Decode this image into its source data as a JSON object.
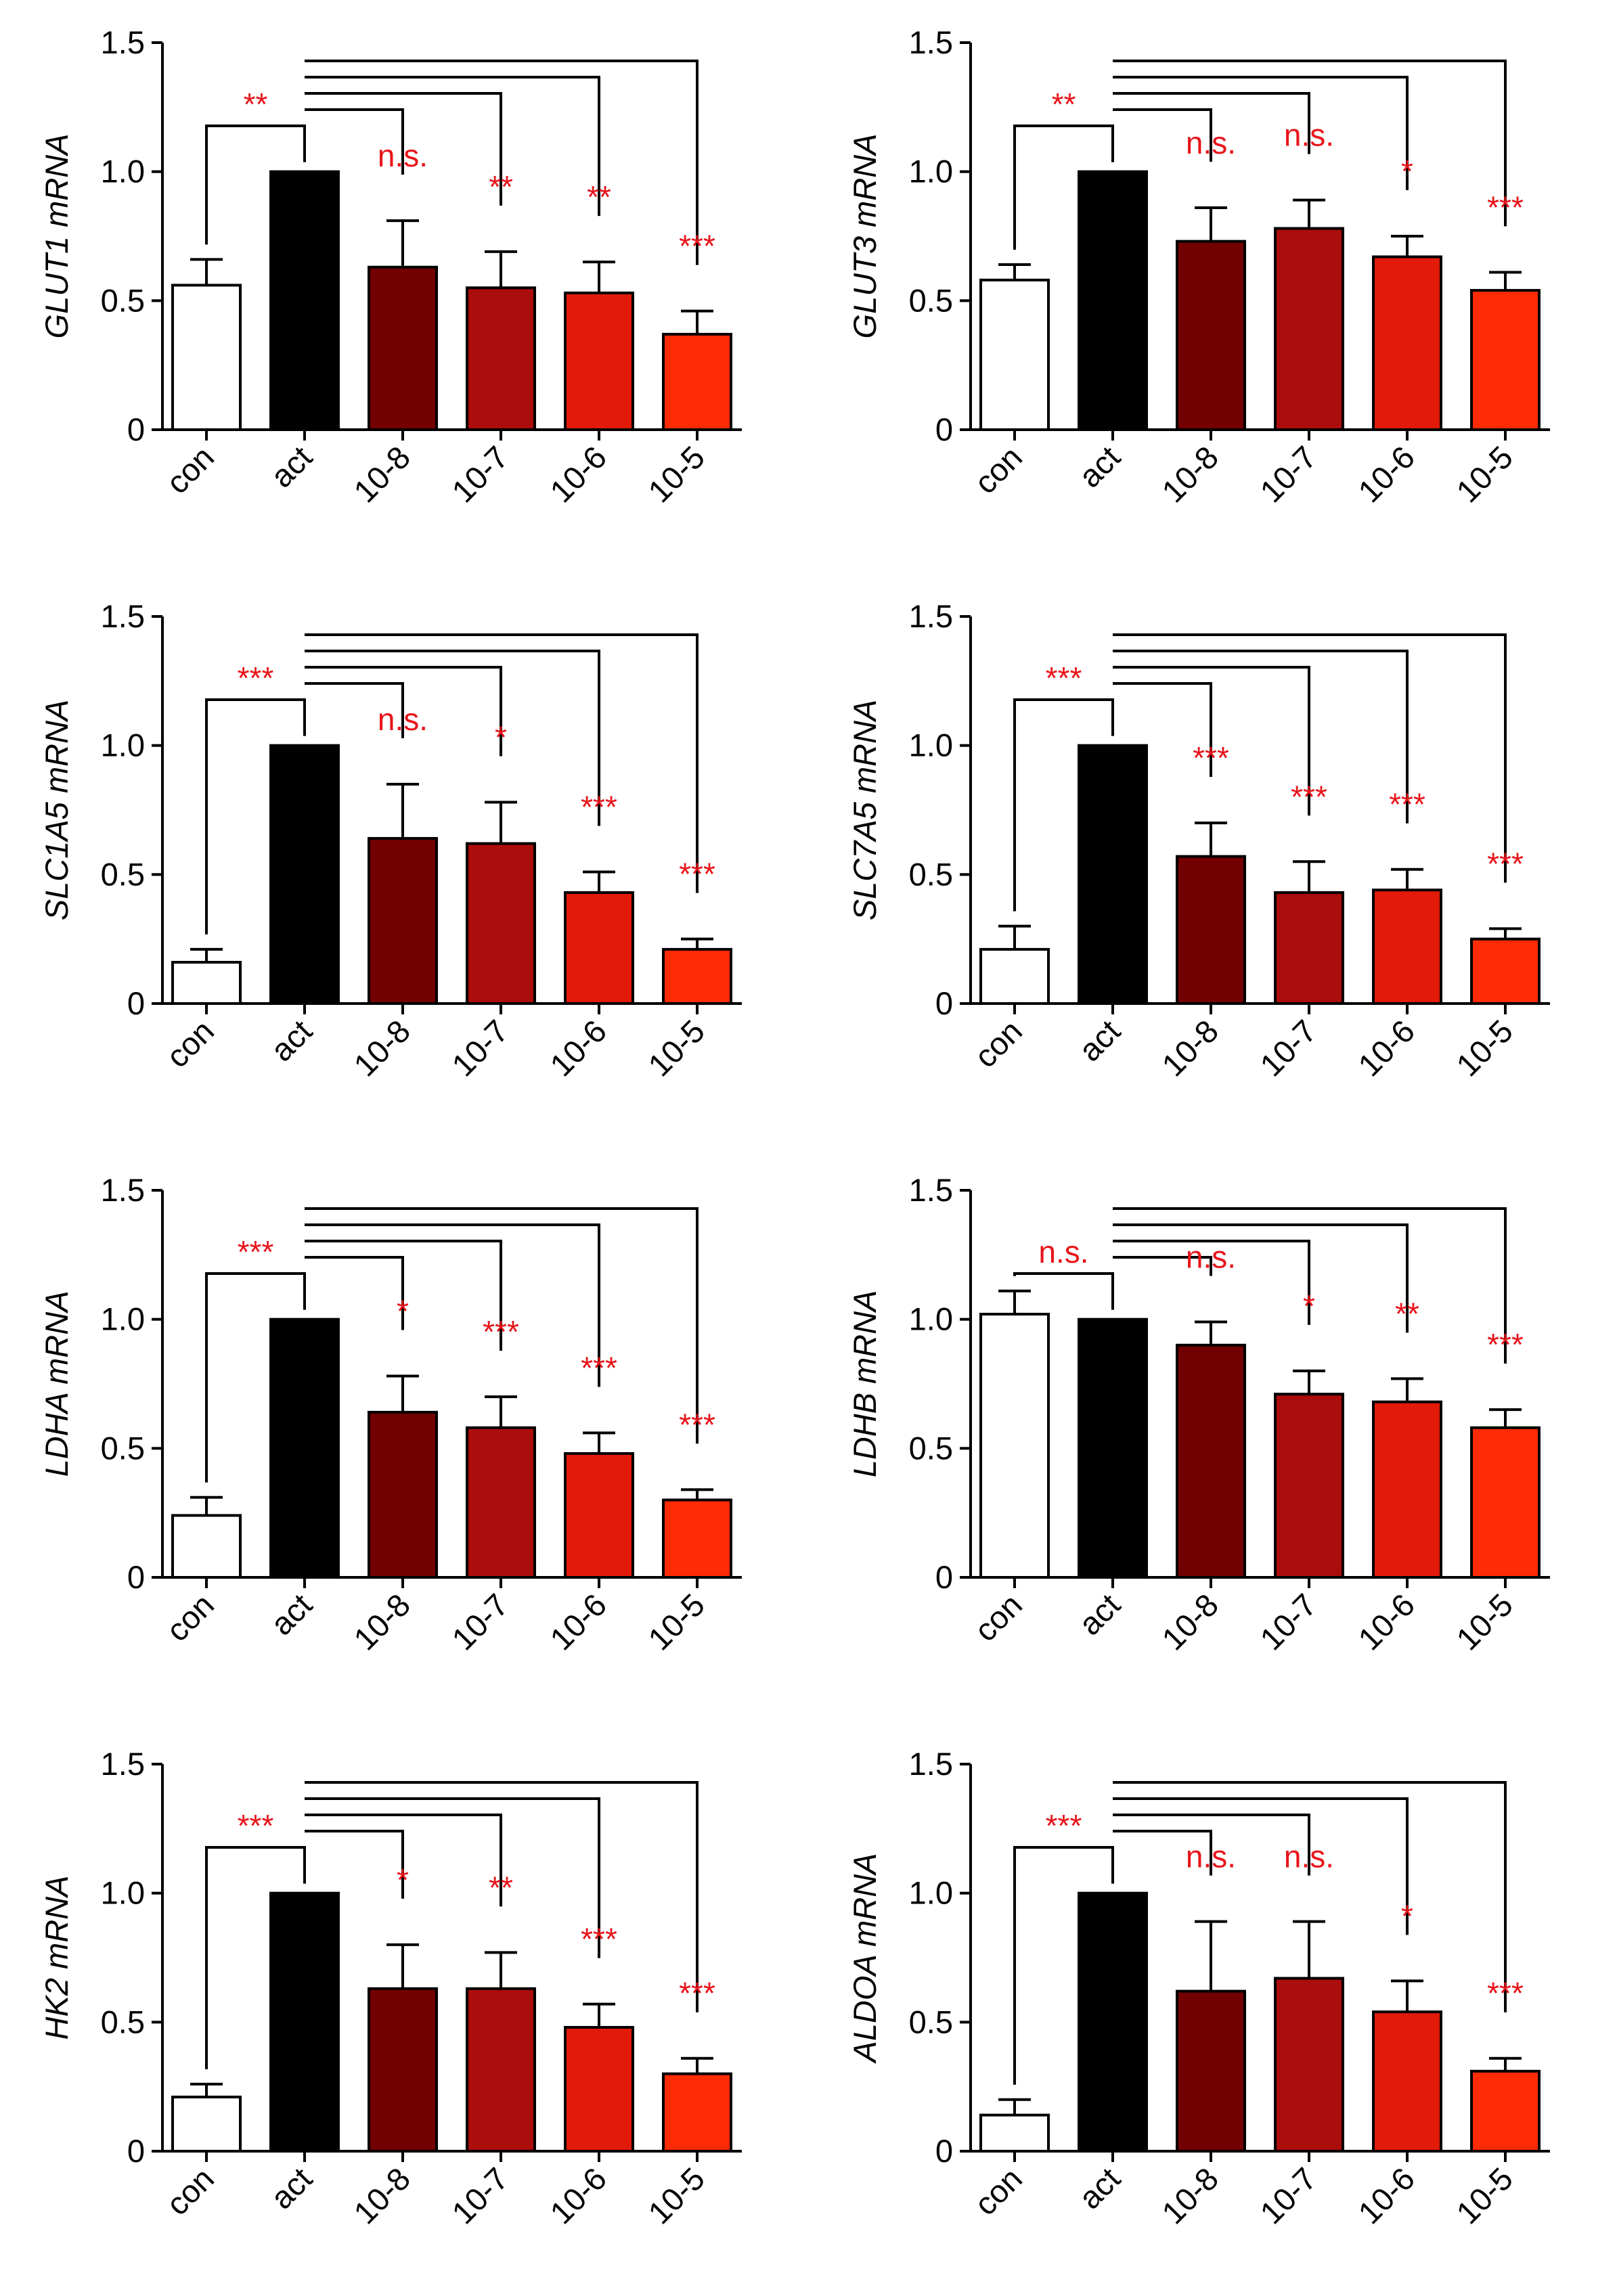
{
  "colors": {
    "con": "#ffffff",
    "act": "#000000",
    "10-8": "#720000",
    "10-7": "#ab0c0c",
    "10-6": "#e21a0a",
    "10-5": "#ff2b05",
    "significance": "#e8141a",
    "axis": "#000000"
  },
  "chart_data": [
    {
      "type": "bar",
      "ylabel": "GLUT1 mRNA",
      "ylim": [
        0,
        1.5
      ],
      "yticks": [
        "0",
        "0.5",
        "1.0",
        "1.5"
      ],
      "categories": [
        "con",
        "act",
        "10-8",
        "10-7",
        "10-6",
        "10-5"
      ],
      "values": [
        0.56,
        1.0,
        0.63,
        0.55,
        0.53,
        0.37
      ],
      "errors": [
        0.1,
        0.0,
        0.18,
        0.14,
        0.12,
        0.09
      ],
      "significance": [
        "**",
        "n.s.",
        "**",
        "**",
        "***"
      ]
    },
    {
      "type": "bar",
      "ylabel": "GLUT3 mRNA",
      "ylim": [
        0,
        1.5
      ],
      "yticks": [
        "0",
        "0.5",
        "1.0",
        "1.5"
      ],
      "categories": [
        "con",
        "act",
        "10-8",
        "10-7",
        "10-6",
        "10-5"
      ],
      "values": [
        0.58,
        1.0,
        0.73,
        0.78,
        0.67,
        0.54
      ],
      "errors": [
        0.06,
        0.0,
        0.13,
        0.11,
        0.08,
        0.07
      ],
      "significance": [
        "**",
        "n.s.",
        "n.s.",
        "*",
        "***"
      ]
    },
    {
      "type": "bar",
      "ylabel": "SLC1A5 mRNA",
      "ylim": [
        0,
        1.5
      ],
      "yticks": [
        "0",
        "0.5",
        "1.0",
        "1.5"
      ],
      "categories": [
        "con",
        "act",
        "10-8",
        "10-7",
        "10-6",
        "10-5"
      ],
      "values": [
        0.16,
        1.0,
        0.64,
        0.62,
        0.43,
        0.21
      ],
      "errors": [
        0.05,
        0.0,
        0.21,
        0.16,
        0.08,
        0.04
      ],
      "significance": [
        "***",
        "n.s.",
        "*",
        "***",
        "***"
      ]
    },
    {
      "type": "bar",
      "ylabel": "SLC7A5 mRNA",
      "ylim": [
        0,
        1.5
      ],
      "yticks": [
        "0",
        "0.5",
        "1.0",
        "1.5"
      ],
      "categories": [
        "con",
        "act",
        "10-8",
        "10-7",
        "10-6",
        "10-5"
      ],
      "values": [
        0.21,
        1.0,
        0.57,
        0.43,
        0.44,
        0.25
      ],
      "errors": [
        0.09,
        0.0,
        0.13,
        0.12,
        0.08,
        0.04
      ],
      "significance": [
        "***",
        "***",
        "***",
        "***",
        "***"
      ]
    },
    {
      "type": "bar",
      "ylabel": "LDHA mRNA",
      "ylim": [
        0,
        1.5
      ],
      "yticks": [
        "0",
        "0.5",
        "1.0",
        "1.5"
      ],
      "categories": [
        "con",
        "act",
        "10-8",
        "10-7",
        "10-6",
        "10-5"
      ],
      "values": [
        0.24,
        1.0,
        0.64,
        0.58,
        0.48,
        0.3
      ],
      "errors": [
        0.07,
        0.0,
        0.14,
        0.12,
        0.08,
        0.04
      ],
      "significance": [
        "***",
        "*",
        "***",
        "***",
        "***"
      ]
    },
    {
      "type": "bar",
      "ylabel": "LDHB mRNA",
      "ylim": [
        0,
        1.5
      ],
      "yticks": [
        "0",
        "0.5",
        "1.0",
        "1.5"
      ],
      "categories": [
        "con",
        "act",
        "10-8",
        "10-7",
        "10-6",
        "10-5"
      ],
      "values": [
        1.02,
        1.0,
        0.9,
        0.71,
        0.68,
        0.58
      ],
      "errors": [
        0.09,
        0.0,
        0.09,
        0.09,
        0.09,
        0.07
      ],
      "significance": [
        "n.s.",
        "n.s.",
        "*",
        "**",
        "***"
      ]
    },
    {
      "type": "bar",
      "ylabel": "HK2 mRNA",
      "ylim": [
        0,
        1.5
      ],
      "yticks": [
        "0",
        "0.5",
        "1.0",
        "1.5"
      ],
      "categories": [
        "con",
        "act",
        "10-8",
        "10-7",
        "10-6",
        "10-5"
      ],
      "values": [
        0.21,
        1.0,
        0.63,
        0.63,
        0.48,
        0.3
      ],
      "errors": [
        0.05,
        0.0,
        0.17,
        0.14,
        0.09,
        0.06
      ],
      "significance": [
        "***",
        "*",
        "**",
        "***",
        "***"
      ]
    },
    {
      "type": "bar",
      "ylabel": "ALDOA mRNA",
      "ylim": [
        0,
        1.5
      ],
      "yticks": [
        "0",
        "0.5",
        "1.0",
        "1.5"
      ],
      "categories": [
        "con",
        "act",
        "10-8",
        "10-7",
        "10-6",
        "10-5"
      ],
      "values": [
        0.14,
        1.0,
        0.62,
        0.67,
        0.54,
        0.31
      ],
      "errors": [
        0.06,
        0.0,
        0.27,
        0.22,
        0.12,
        0.05
      ],
      "significance": [
        "***",
        "n.s.",
        "n.s.",
        "*",
        "***"
      ]
    }
  ]
}
